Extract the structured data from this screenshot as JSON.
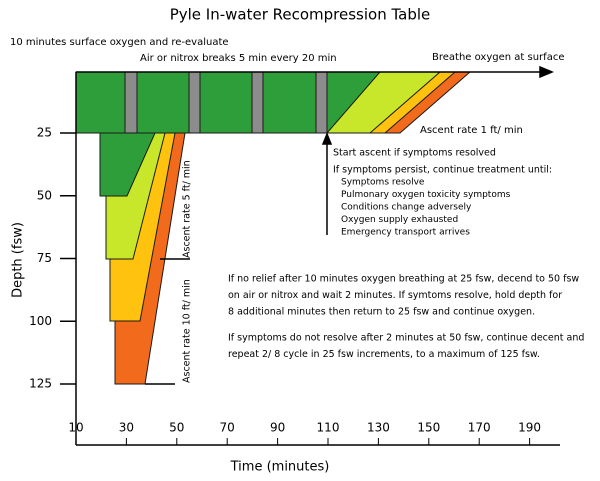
{
  "title": "Pyle In-water Recompression Table",
  "top_note": "10 minutes surface oxygen and re-evaluate",
  "breaks_note": "Air or nitrox breaks 5 min every 20 min",
  "surface_note": "Breathe oxygen at surface",
  "ascent_1": "Ascent rate 1 ft/ min",
  "ascent_5": "Ascent rate 5 ft/ min",
  "ascent_10": "Ascent rate 10 ft/ min",
  "start_ascent": "Start ascent if symptoms resolved",
  "persist": "If symptoms persist, continue treatment until:",
  "until_items": [
    "Symptoms resolve",
    "Pulmonary oxygen toxicity symptoms",
    "Conditions change adversely",
    "Oxygen supply exhausted",
    "Emergency transport arrives"
  ],
  "paragraph_1": [
    "If no relief after 10 minutes oxygen breathing at 25 fsw, decend to 50 fsw",
    "on air or nitrox and wait 2 minutes. If symtoms resolve, hold depth for",
    "8 additional minutes then return to 25 fsw and continue oxygen."
  ],
  "paragraph_2": [
    "If symptoms do not resolve after 2 minutes at 50 fsw, continue decent and",
    "repeat 2/ 8 cycle in 25 fsw increments, to a maximum of 125 fsw."
  ],
  "y_axis_title": "Depth (fsw)",
  "x_axis_title": "Time (minutes)",
  "yticks": [
    25,
    50,
    75,
    100,
    125
  ],
  "xticks": [
    10,
    30,
    50,
    70,
    90,
    110,
    130,
    150,
    170,
    190
  ]
}
